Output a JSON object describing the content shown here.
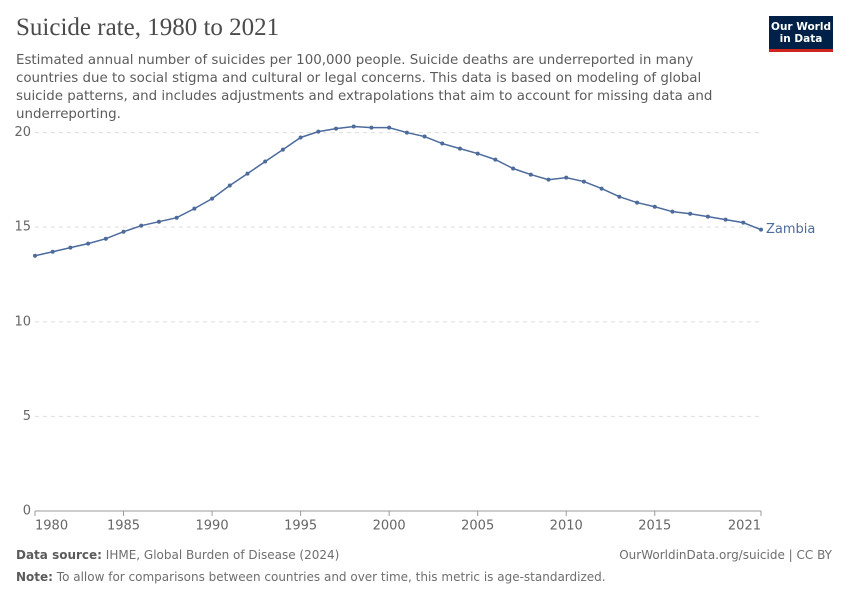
{
  "chart_data": {
    "type": "line",
    "title": "Suicide rate, 1980 to 2021",
    "subtitle": "Estimated annual number of suicides per 100,000 people. Suicide deaths are underreported in many countries due to social stigma and cultural or legal concerns. This data is based on modeling of global suicide patterns, and includes adjustments and extrapolations that aim to account for missing data and underreporting.",
    "logo": [
      "Our World",
      "in Data"
    ],
    "source_label": "Data source:",
    "source": "IHME, Global Burden of Disease (2024)",
    "url": "OurWorldinData.org/suicide | CC BY",
    "note_label": "Note:",
    "note": "To allow for comparisons between countries and over time, this metric is age-standardized.",
    "x": [
      1980,
      1981,
      1982,
      1983,
      1984,
      1985,
      1986,
      1987,
      1988,
      1989,
      1990,
      1991,
      1992,
      1993,
      1994,
      1995,
      1996,
      1997,
      1998,
      1999,
      2000,
      2001,
      2002,
      2003,
      2004,
      2005,
      2006,
      2007,
      2008,
      2009,
      2010,
      2011,
      2012,
      2013,
      2014,
      2015,
      2016,
      2017,
      2018,
      2019,
      2020,
      2021
    ],
    "series": [
      {
        "name": "Zambia",
        "color": "#4c6a9c",
        "values": [
          13.49,
          13.7,
          13.92,
          14.13,
          14.39,
          14.76,
          15.08,
          15.29,
          15.5,
          15.98,
          16.51,
          17.2,
          17.83,
          18.47,
          19.1,
          19.74,
          20.05,
          20.21,
          20.32,
          20.26,
          20.26,
          20.0,
          19.79,
          19.42,
          19.15,
          18.89,
          18.57,
          18.1,
          17.78,
          17.51,
          17.62,
          17.41,
          17.04,
          16.61,
          16.3,
          16.08,
          15.82,
          15.71,
          15.56,
          15.4,
          15.24,
          14.87
        ]
      }
    ],
    "xlim": [
      1980,
      2021
    ],
    "xticks": [
      1980,
      1985,
      1990,
      1995,
      2000,
      2005,
      2010,
      2015,
      2021
    ],
    "ylim": [
      0,
      20.4
    ],
    "yticks": [
      0,
      5,
      10,
      15,
      20
    ],
    "grid": true
  }
}
